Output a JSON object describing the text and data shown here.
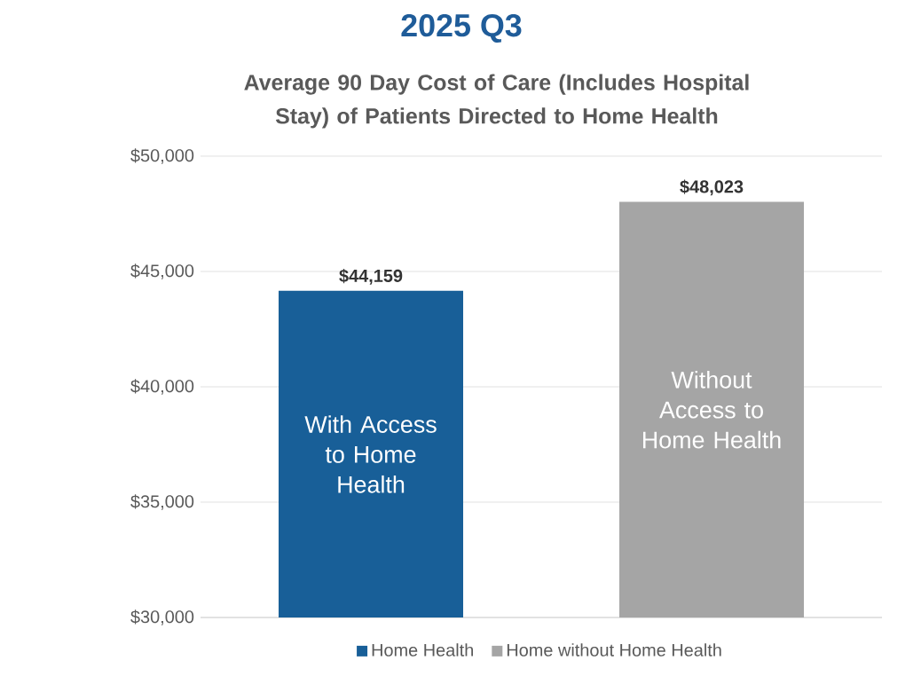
{
  "chart_data": {
    "type": "bar",
    "title": "2025 Q3",
    "subtitle": "Average 90 Day Cost of Care (Includes Hospital Stay) of Patients Directed to Home Health",
    "categories": [
      null,
      null
    ],
    "series": [
      {
        "name": "Home Health",
        "color": "#185f98",
        "values": [
          44159,
          null
        ],
        "value_labels": [
          "$44,159",
          null
        ]
      },
      {
        "name": "Home without Home Health",
        "color": "#a5a5a5",
        "values": [
          null,
          48023
        ],
        "value_labels": [
          null,
          "$48,023"
        ]
      }
    ],
    "annotations": [
      "With Access to Home Health",
      "Without Access to Home Health"
    ],
    "ylim": [
      30000,
      50000
    ],
    "yticks": [
      {
        "value": 30000,
        "label": "$30,000"
      },
      {
        "value": 35000,
        "label": "$35,000"
      },
      {
        "value": 40000,
        "label": "$40,000"
      },
      {
        "value": 45000,
        "label": "$45,000"
      },
      {
        "value": 50000,
        "label": "$50,000"
      }
    ],
    "grid": "y",
    "legend": "bottom"
  }
}
